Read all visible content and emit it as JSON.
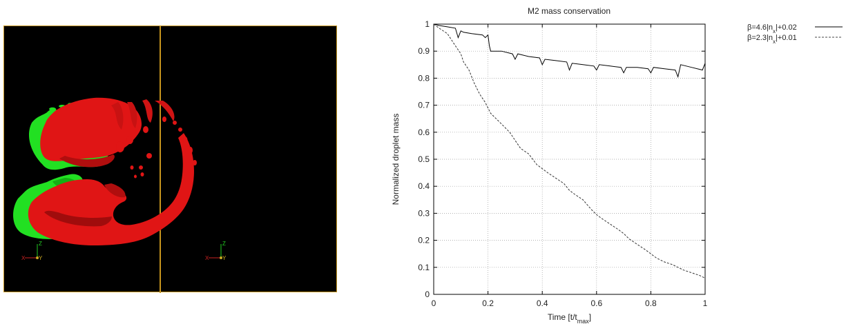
{
  "render_panel": {
    "views": [
      {
        "blob_color": "#22e022",
        "axes": {
          "z_label": "Z",
          "x_label": "X",
          "y_label": "Y"
        }
      },
      {
        "blob_color": "#e01515",
        "axes": {
          "z_label": "Z",
          "x_label": "X",
          "y_label": "Y"
        }
      }
    ],
    "divider_color": "#c8961e",
    "background": "#000000"
  },
  "chart_data": {
    "type": "line",
    "title": "M2 mass conservation",
    "xlabel_main": "Time [t/t",
    "xlabel_sub": "max",
    "xlabel_end": "]",
    "ylabel": "Normalized droplet mass",
    "xlim": [
      0,
      1
    ],
    "ylim": [
      0,
      1
    ],
    "xticks": [
      "0",
      "0.2",
      "0.4",
      "0.6",
      "0.8",
      "1"
    ],
    "yticks": [
      "0",
      "0.1",
      "0.2",
      "0.3",
      "0.4",
      "0.5",
      "0.6",
      "0.7",
      "0.8",
      "0.9",
      "1"
    ],
    "grid": true,
    "legend_position": "top-right-outside",
    "series": [
      {
        "legend_text": "β=4.6|n",
        "legend_sub": "x",
        "legend_end": "|+0.02",
        "style": "solid",
        "x": [
          0.0,
          0.02,
          0.05,
          0.08,
          0.09,
          0.1,
          0.11,
          0.14,
          0.18,
          0.19,
          0.2,
          0.205,
          0.21,
          0.25,
          0.29,
          0.3,
          0.31,
          0.35,
          0.39,
          0.4,
          0.41,
          0.45,
          0.49,
          0.5,
          0.51,
          0.55,
          0.59,
          0.6,
          0.61,
          0.65,
          0.69,
          0.7,
          0.71,
          0.75,
          0.79,
          0.8,
          0.81,
          0.85,
          0.89,
          0.9,
          0.91,
          0.95,
          0.99,
          1.0
        ],
        "y": [
          1.0,
          0.995,
          0.99,
          0.985,
          0.95,
          0.975,
          0.97,
          0.965,
          0.96,
          0.95,
          0.96,
          0.92,
          0.9,
          0.9,
          0.89,
          0.87,
          0.89,
          0.88,
          0.875,
          0.85,
          0.87,
          0.865,
          0.86,
          0.83,
          0.855,
          0.85,
          0.845,
          0.83,
          0.85,
          0.845,
          0.84,
          0.82,
          0.84,
          0.84,
          0.835,
          0.82,
          0.84,
          0.835,
          0.83,
          0.805,
          0.85,
          0.84,
          0.83,
          0.855
        ]
      },
      {
        "legend_text": "β=2.3|n",
        "legend_sub": "x",
        "legend_end": "|+0.01",
        "style": "dashed",
        "x": [
          0.0,
          0.02,
          0.05,
          0.08,
          0.1,
          0.11,
          0.13,
          0.15,
          0.17,
          0.19,
          0.2,
          0.21,
          0.23,
          0.25,
          0.28,
          0.3,
          0.32,
          0.35,
          0.38,
          0.4,
          0.42,
          0.45,
          0.48,
          0.5,
          0.52,
          0.55,
          0.58,
          0.6,
          0.62,
          0.65,
          0.68,
          0.7,
          0.72,
          0.75,
          0.78,
          0.8,
          0.82,
          0.85,
          0.88,
          0.9,
          0.92,
          0.95,
          0.98,
          1.0
        ],
        "y": [
          1.0,
          0.985,
          0.965,
          0.92,
          0.89,
          0.86,
          0.83,
          0.78,
          0.74,
          0.71,
          0.69,
          0.67,
          0.65,
          0.63,
          0.6,
          0.57,
          0.54,
          0.52,
          0.48,
          0.465,
          0.45,
          0.43,
          0.41,
          0.385,
          0.37,
          0.35,
          0.315,
          0.295,
          0.28,
          0.26,
          0.24,
          0.225,
          0.205,
          0.185,
          0.165,
          0.15,
          0.135,
          0.12,
          0.11,
          0.1,
          0.09,
          0.08,
          0.07,
          0.06
        ]
      }
    ]
  }
}
